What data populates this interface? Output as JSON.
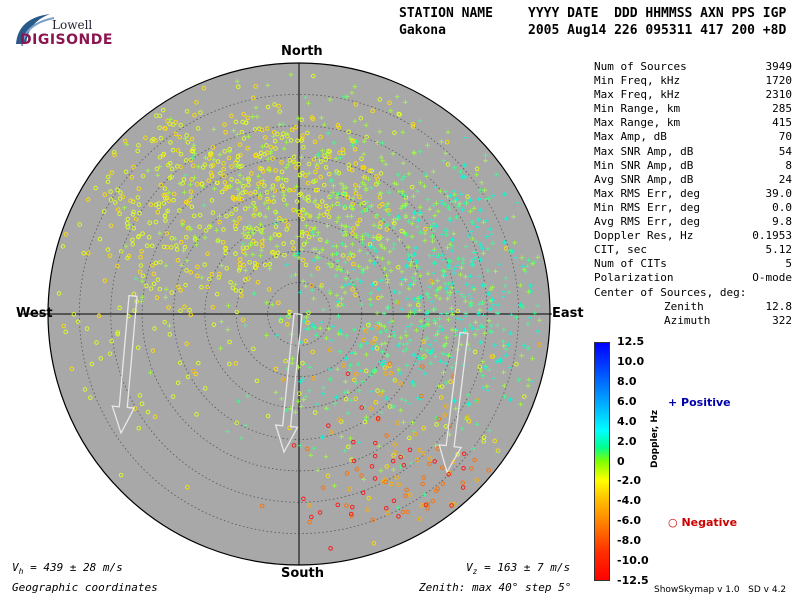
{
  "logo": {
    "lowell": "Lowell",
    "digisonde": "DIGISONDE"
  },
  "header": {
    "station_label": "STATION NAME",
    "station_value": "Gakona",
    "date_labels": "YYYY DATE  DDD HHMMSS AXN PPS IGP",
    "date_values": "2005 Aug14 226 095311 417 200 +8D"
  },
  "directions": {
    "north": "North",
    "south": "South",
    "east": "East",
    "west": "West"
  },
  "stats": [
    {
      "label": "Num of Sources",
      "value": "3949"
    },
    {
      "label": "Min Freq, kHz",
      "value": "1720"
    },
    {
      "label": "Max Freq, kHz",
      "value": "2310"
    },
    {
      "label": "Min Range, km",
      "value": "285"
    },
    {
      "label": "Max Range, km",
      "value": "415"
    },
    {
      "label": "Max Amp, dB",
      "value": "70"
    },
    {
      "label": "Max SNR Amp, dB",
      "value": "54"
    },
    {
      "label": "Min SNR Amp, dB",
      "value": "8"
    },
    {
      "label": "Avg SNR Amp, dB",
      "value": "24"
    },
    {
      "label": "Max RMS Err, deg",
      "value": "39.0"
    },
    {
      "label": "Min RMS Err, deg",
      "value": "0.0"
    },
    {
      "label": "Avg RMS Err, deg",
      "value": "9.8"
    },
    {
      "label": "Doppler Res, Hz",
      "value": "0.1953"
    },
    {
      "label": "CIT, sec",
      "value": "5.12"
    },
    {
      "label": "Num of CITs",
      "value": "5"
    },
    {
      "label": "Polarization",
      "value": "O-mode"
    }
  ],
  "center_title": "Center of Sources, deg:",
  "center_rows": [
    {
      "label": "Zenith",
      "value": "12.8"
    },
    {
      "label": "Azimuth",
      "value": "322"
    }
  ],
  "scale": {
    "ticks": [
      "12.5",
      "10.0",
      "8.0",
      "6.0",
      "4.0",
      "2.0",
      "0",
      "-2.0",
      "-4.0",
      "-6.0",
      "-8.0",
      "-10.0",
      "-12.5"
    ],
    "label": "Doppler, Hz"
  },
  "legend": {
    "positive": "Positive",
    "negative": "Negative"
  },
  "footer": {
    "vh": "V  = 439 ± 28 m/s",
    "vh_sub": "h",
    "vz": "V  = 163 ± 7 m/s",
    "vz_sub": "z",
    "coords": "Geographic coordinates",
    "zenith": "Zenith: max 40°  step 5°",
    "version": "ShowSkymap v 1.0   SD v 4.2"
  },
  "colors": {
    "disk": "#a8a8a8",
    "positive": "#0000aa",
    "negative": "#cc0000",
    "brand": "#8a1550"
  }
}
